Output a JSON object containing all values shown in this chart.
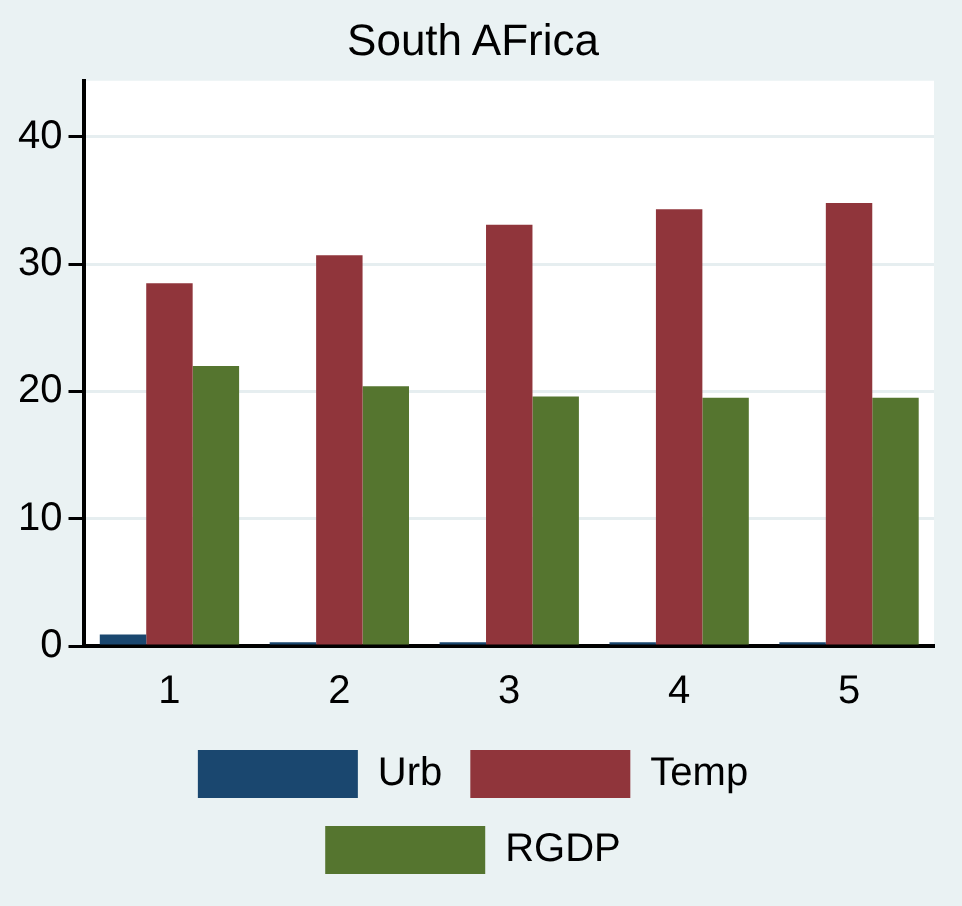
{
  "chart_data": {
    "type": "bar",
    "title": "South AFrica",
    "categories": [
      "1",
      "2",
      "3",
      "4",
      "5"
    ],
    "series": [
      {
        "name": "Urb",
        "color": "#1a476f",
        "values": [
          0.9,
          0.3,
          0.3,
          0.3,
          0.3
        ]
      },
      {
        "name": "Temp",
        "color": "#90353b",
        "values": [
          28.5,
          30.7,
          33.1,
          34.3,
          34.8
        ]
      },
      {
        "name": "RGDP",
        "color": "#55752f",
        "values": [
          22.0,
          20.4,
          19.6,
          19.5,
          19.5
        ]
      }
    ],
    "ylim": [
      0,
      44.4
    ],
    "yticks": [
      0,
      10,
      20,
      30,
      40
    ],
    "grid": "y",
    "legend": "bottom"
  }
}
